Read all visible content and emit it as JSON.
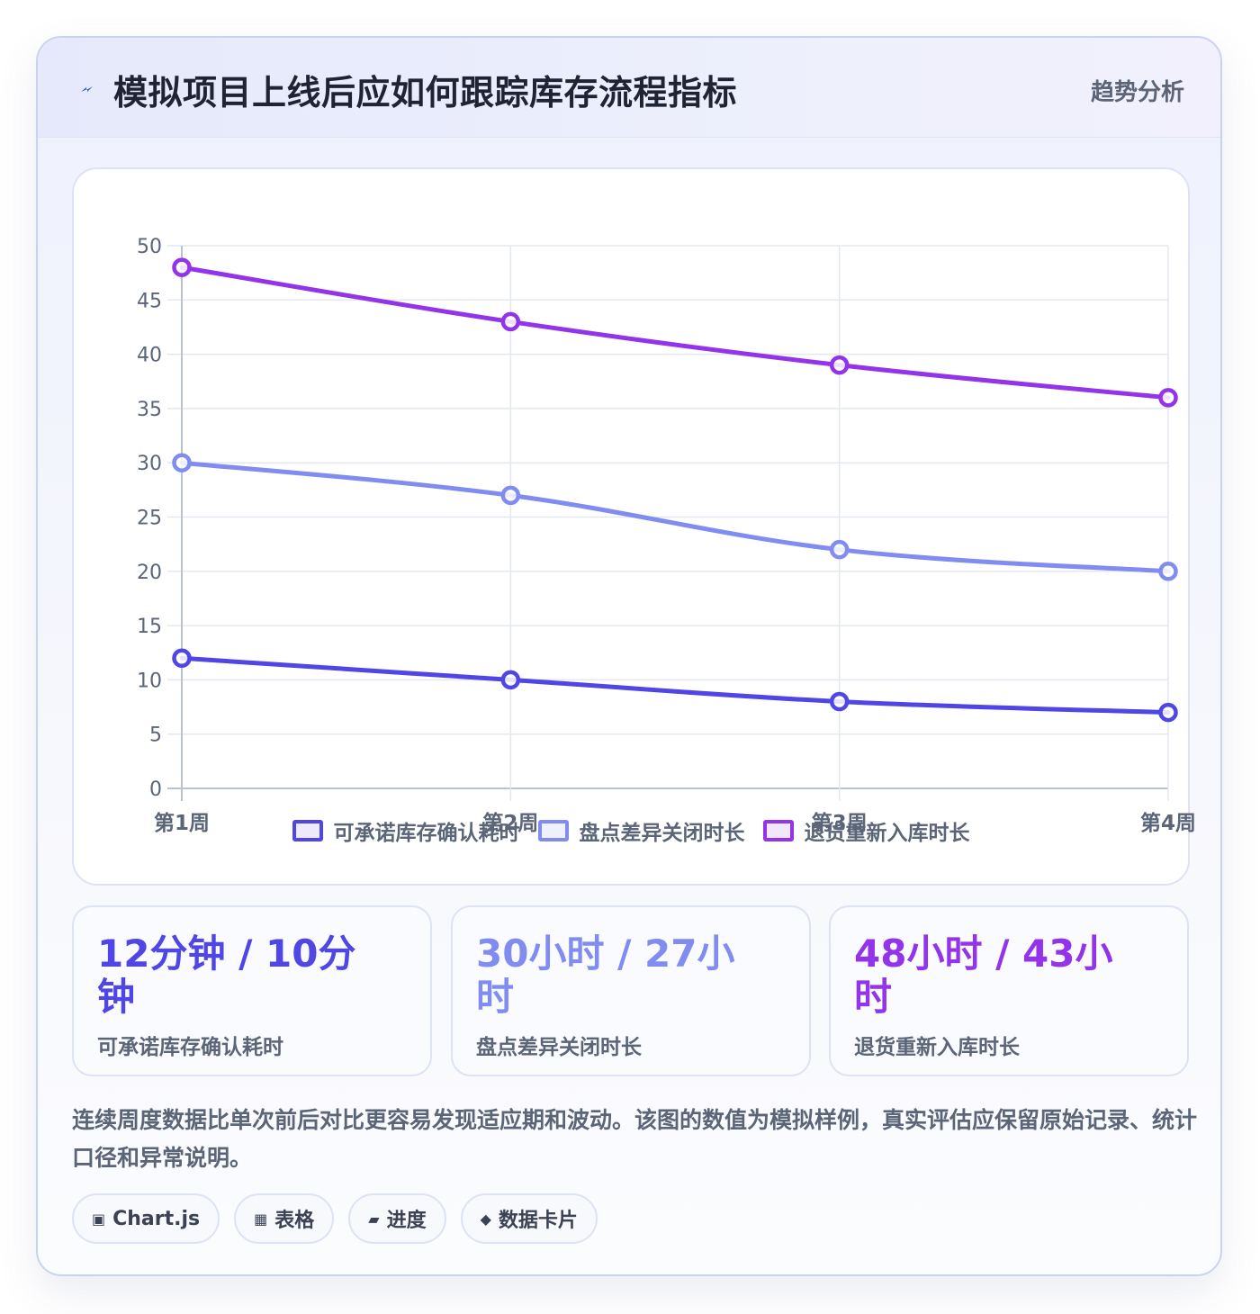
{
  "header": {
    "title": "模拟项目上线后应如何跟踪库存流程指标",
    "badge": "趋势分析",
    "icon": "lightning-icon"
  },
  "chart_data": {
    "type": "line",
    "categories": [
      "第1周",
      "第2周",
      "第3周",
      "第4周"
    ],
    "series": [
      {
        "name": "可承诺库存确认耗时",
        "values": [
          12,
          10,
          8,
          7
        ],
        "color": "#4f46e5"
      },
      {
        "name": "盘点差异关闭时长",
        "values": [
          30,
          27,
          22,
          20
        ],
        "color": "#818cf0"
      },
      {
        "name": "退货重新入库时长",
        "values": [
          48,
          43,
          39,
          36
        ],
        "color": "#9333ea"
      }
    ],
    "yticks": [
      0,
      5,
      10,
      15,
      20,
      25,
      30,
      35,
      40,
      45,
      50
    ],
    "ylim": [
      0,
      50
    ],
    "grid": true,
    "legend": "bottom"
  },
  "stats": [
    {
      "value": "12分钟 / 10分钟",
      "label": "可承诺库存确认耗时",
      "color": "#4f46e5"
    },
    {
      "value": "30小时 / 27小时",
      "label": "盘点差异关闭时长",
      "color": "#818cf0"
    },
    {
      "value": "48小时 / 43小时",
      "label": "退货重新入库时长",
      "color": "#9333ea"
    }
  ],
  "note": "连续周度数据比单次前后对比更容易发现适应期和波动。该图的数值为模拟样例，真实评估应保留原始记录、统计口径和异常说明。",
  "tags": [
    {
      "icon": "▣",
      "icon_name": "chart-icon",
      "label": "Chart.js"
    },
    {
      "icon": "▦",
      "icon_name": "table-icon",
      "label": "表格"
    },
    {
      "icon": "▰",
      "icon_name": "progress-icon",
      "label": "进度"
    },
    {
      "icon": "◆",
      "icon_name": "diamond-icon",
      "label": "数据卡片"
    }
  ]
}
